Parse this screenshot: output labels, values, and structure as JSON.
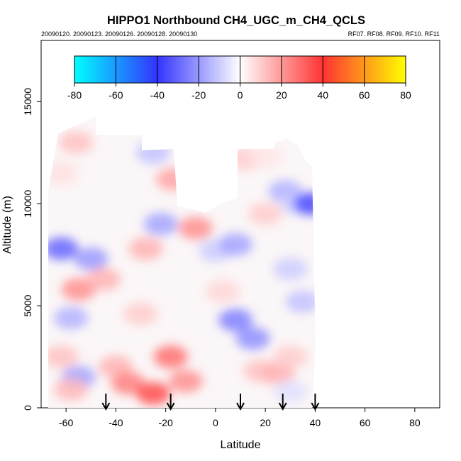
{
  "chart_data": {
    "type": "heatmap",
    "title": "HIPPO1 Northbound CH4_UGC_m_CH4_QCLS",
    "subtitle_left": "20090120. 20090123. 20090126. 20090128. 20090130",
    "subtitle_right": "RF07. RF08. RF09. RF10. RF11",
    "xlabel": "Latitude",
    "ylabel": "Altitude (m)",
    "xlim": [
      -70,
      90
    ],
    "ylim": [
      0,
      18000
    ],
    "x_ticks": [
      -60,
      -40,
      -20,
      0,
      20,
      40,
      60,
      80
    ],
    "y_ticks": [
      0,
      5000,
      10000,
      15000
    ],
    "colorbar": {
      "ticks": [
        -80,
        -60,
        -40,
        -20,
        0,
        20,
        40,
        60,
        80
      ],
      "range": [
        -80,
        80
      ],
      "colors": [
        "#00ffff",
        "#3333ff",
        "#ffffff",
        "#ff3333",
        "#ffff00"
      ]
    },
    "arrow_latitudes": [
      -44,
      -18,
      10,
      27,
      40
    ],
    "data_extent": {
      "lat": [
        -67,
        40
      ],
      "alt": [
        300,
        14000
      ]
    },
    "features": [
      {
        "lat": -56,
        "alt": 13000,
        "value": 12
      },
      {
        "lat": -62,
        "alt": 11500,
        "value": 6
      },
      {
        "lat": -62,
        "alt": 7800,
        "value": -30
      },
      {
        "lat": -50,
        "alt": 7300,
        "value": -20
      },
      {
        "lat": -55,
        "alt": 5800,
        "value": 22
      },
      {
        "lat": -45,
        "alt": 6300,
        "value": 15
      },
      {
        "lat": -58,
        "alt": 4400,
        "value": -15
      },
      {
        "lat": -62,
        "alt": 2500,
        "value": 12
      },
      {
        "lat": -55,
        "alt": 1500,
        "value": -18
      },
      {
        "lat": -58,
        "alt": 900,
        "value": 14
      },
      {
        "lat": -40,
        "alt": 2000,
        "value": 15
      },
      {
        "lat": -35,
        "alt": 1200,
        "value": 25
      },
      {
        "lat": -25,
        "alt": 700,
        "value": 35
      },
      {
        "lat": -30,
        "alt": 4600,
        "value": 10
      },
      {
        "lat": -28,
        "alt": 7800,
        "value": 15
      },
      {
        "lat": -22,
        "alt": 9000,
        "value": -18
      },
      {
        "lat": -25,
        "alt": 12500,
        "value": -12
      },
      {
        "lat": -17,
        "alt": 11200,
        "value": 18
      },
      {
        "lat": -18,
        "alt": 2500,
        "value": 28
      },
      {
        "lat": -12,
        "alt": 1300,
        "value": 22
      },
      {
        "lat": -8,
        "alt": 8800,
        "value": 22
      },
      {
        "lat": 0,
        "alt": 7700,
        "value": -10
      },
      {
        "lat": 3,
        "alt": 5700,
        "value": 8
      },
      {
        "lat": 8,
        "alt": 8000,
        "value": -18
      },
      {
        "lat": 8,
        "alt": 4300,
        "value": -25
      },
      {
        "lat": 15,
        "alt": 3400,
        "value": -22
      },
      {
        "lat": 18,
        "alt": 1800,
        "value": 12
      },
      {
        "lat": 25,
        "alt": 1700,
        "value": 15
      },
      {
        "lat": 20,
        "alt": 9500,
        "value": 10
      },
      {
        "lat": 28,
        "alt": 10600,
        "value": -15
      },
      {
        "lat": 33,
        "alt": 10000,
        "value": -10
      },
      {
        "lat": 38,
        "alt": 10000,
        "value": -35
      },
      {
        "lat": 30,
        "alt": 6800,
        "value": -10
      },
      {
        "lat": 35,
        "alt": 5200,
        "value": -12
      },
      {
        "lat": 30,
        "alt": 2500,
        "value": 10
      },
      {
        "lat": 30,
        "alt": 800,
        "value": -6
      },
      {
        "lat": 12,
        "alt": 12200,
        "value": 10
      },
      {
        "lat": 20,
        "alt": 12300,
        "value": 5
      }
    ]
  }
}
